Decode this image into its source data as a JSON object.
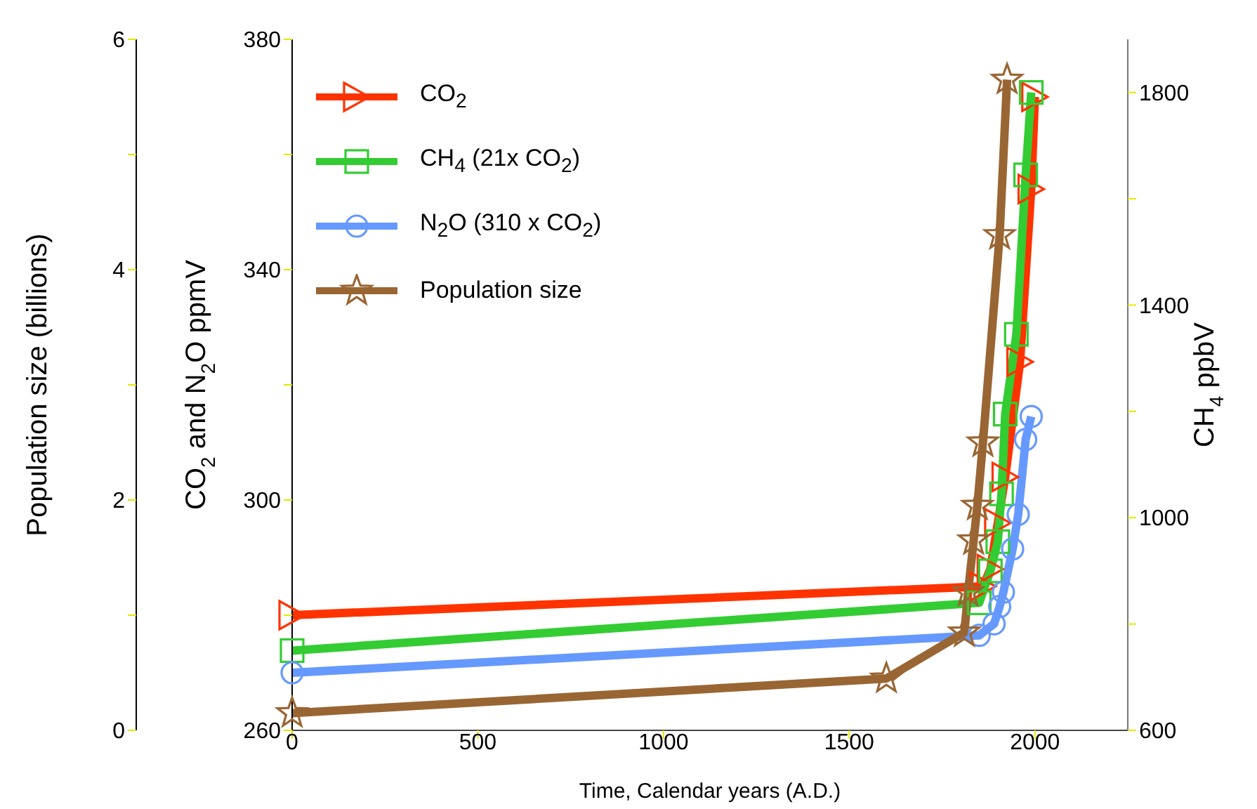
{
  "chart_data": {
    "type": "line",
    "xlabel": "Time, Calendar years (A.D.)",
    "ylabel": "CO$_{2}$ and N$_{2}$O ppmV",
    "y2label": "CH$_{4}$ ppbV",
    "y3label": "Population size (billions)",
    "xlim": [
      0,
      2250
    ],
    "xticks": [
      0,
      500,
      1000,
      1500,
      2000
    ],
    "ylim": [
      260,
      380
    ],
    "yticks": [
      260,
      {
        "value": 280,
        "label": null
      },
      300,
      {
        "value": 320,
        "label": null
      },
      340,
      {
        "value": 360,
        "label": null
      },
      380
    ],
    "y2lim": [
      600,
      1900
    ],
    "y2ticks": [
      600,
      {
        "value": 800,
        "label": null
      },
      1000,
      {
        "value": 1200,
        "label": null
      },
      1400,
      {
        "value": 1600,
        "label": null
      },
      1800
    ],
    "y3lim": [
      0,
      6
    ],
    "y3ticks": [
      0,
      {
        "value": 1,
        "label": null
      },
      2,
      {
        "value": 3,
        "label": null
      },
      4,
      {
        "value": 5,
        "label": null
      },
      6
    ],
    "grid": false,
    "legend": "top left",
    "line_style": "solid",
    "series": [
      {
        "name": "CO$_{2}$",
        "color": "#ff3300",
        "marker": "triangle",
        "axis": "y",
        "x": [
          0,
          1860,
          1880,
          1900,
          1920,
          1960,
          1990,
          2000
        ],
        "values": [
          280,
          285,
          288,
          296,
          304,
          324,
          354,
          370
        ]
      },
      {
        "name": "CH$_{4}$  (21x CO$_{2}$)",
        "color": "#33cc33",
        "marker": "square",
        "axis": "y2",
        "x": [
          0,
          1850,
          1880,
          1900,
          1910,
          1920,
          1950,
          1975,
          1990
        ],
        "values": [
          750,
          840,
          900,
          955,
          1045,
          1195,
          1345,
          1645,
          1800
        ]
      },
      {
        "name": "N$_{2}$O  (310 x CO$_{2}$)",
        "color": "#6699ff",
        "marker": "circle",
        "axis": "y",
        "x": [
          0,
          1850,
          1890,
          1905,
          1915,
          1940,
          1955,
          1975,
          1990
        ],
        "values": [
          270,
          276.5,
          278.5,
          281.5,
          284,
          291.5,
          297.5,
          310.5,
          314.5
        ]
      },
      {
        "name": "Population size",
        "color": "#996633",
        "marker": "star",
        "axis": "y3",
        "x": [
          0,
          1600,
          1810,
          1820,
          1835,
          1845,
          1860,
          1905,
          1925
        ],
        "values": [
          0.15,
          0.45,
          0.85,
          1.2,
          1.65,
          1.95,
          2.5,
          4.3,
          5.65
        ]
      }
    ]
  }
}
